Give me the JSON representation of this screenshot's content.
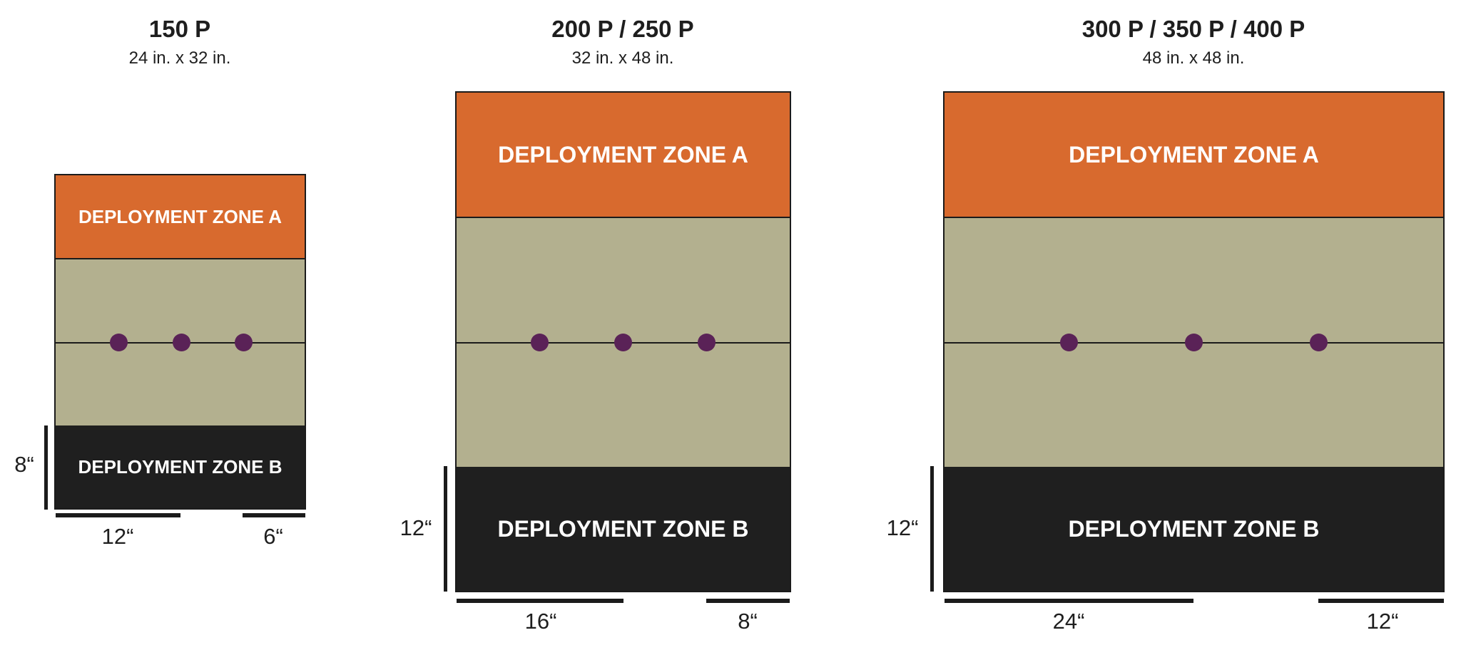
{
  "maps": [
    {
      "title": "150 P",
      "size": "24 in. x 32 in.",
      "zone_a": "DEPLOYMENT ZONE A",
      "zone_b": "DEPLOYMENT ZONE B",
      "objectives": 3,
      "zone_depth_label": "8“",
      "bottom_left_label": "12“",
      "bottom_right_label": "6“"
    },
    {
      "title": "200 P / 250 P",
      "size": "32 in. x 48 in.",
      "zone_a": "DEPLOYMENT ZONE A",
      "zone_b": "DEPLOYMENT ZONE B",
      "objectives": 3,
      "zone_depth_label": "12“",
      "bottom_left_label": "16“",
      "bottom_right_label": "8“"
    },
    {
      "title": "300 P / 350 P / 400 P",
      "size": "48 in. x 48 in.",
      "zone_a": "DEPLOYMENT ZONE A",
      "zone_b": "DEPLOYMENT ZONE B",
      "objectives": 3,
      "zone_depth_label": "12“",
      "bottom_left_label": "24“",
      "bottom_right_label": "12“"
    }
  ],
  "colors": {
    "zone_a": "#d86a2e",
    "no_mans_land": "#b3b08f",
    "zone_b": "#1f1f1f",
    "objective": "#5a2257"
  }
}
